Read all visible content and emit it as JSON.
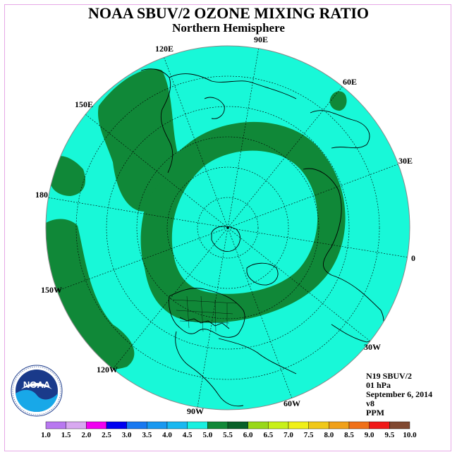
{
  "title": "NOAA SBUV/2 OZONE MIXING RATIO",
  "subtitle": "Northern Hemisphere",
  "longitude_labels": [
    "90E",
    "60E",
    "30E",
    "0",
    "30W",
    "60W",
    "90W",
    "120W",
    "150W",
    "180",
    "150E",
    "120E"
  ],
  "info": {
    "instrument": "N19 SBUV/2",
    "level": "01 hPa",
    "date": "September 6, 2014",
    "version": "v8",
    "units": "PPM"
  },
  "colorbar": {
    "ticks": [
      "1.0",
      "1.5",
      "2.0",
      "2.5",
      "3.0",
      "3.5",
      "4.0",
      "4.5",
      "5.0",
      "5.5",
      "6.0",
      "6.5",
      "7.0",
      "7.5",
      "8.0",
      "8.5",
      "9.0",
      "9.5",
      "10.0"
    ],
    "colors": [
      "#b878f0",
      "#d8a8f0",
      "#f000f0",
      "#0000f0",
      "#1878f0",
      "#1898f0",
      "#18b8f0",
      "#18f0e0",
      "#108838",
      "#086028",
      "#98d818",
      "#c8f018",
      "#f0f018",
      "#f0c818",
      "#f0a018",
      "#f07018",
      "#f01818",
      "#804830"
    ]
  },
  "map_colors": {
    "range_4_5_to_5_0": "#18f8d8",
    "range_5_0_to_5_5": "#108838"
  },
  "logo": "noaa-logo"
}
